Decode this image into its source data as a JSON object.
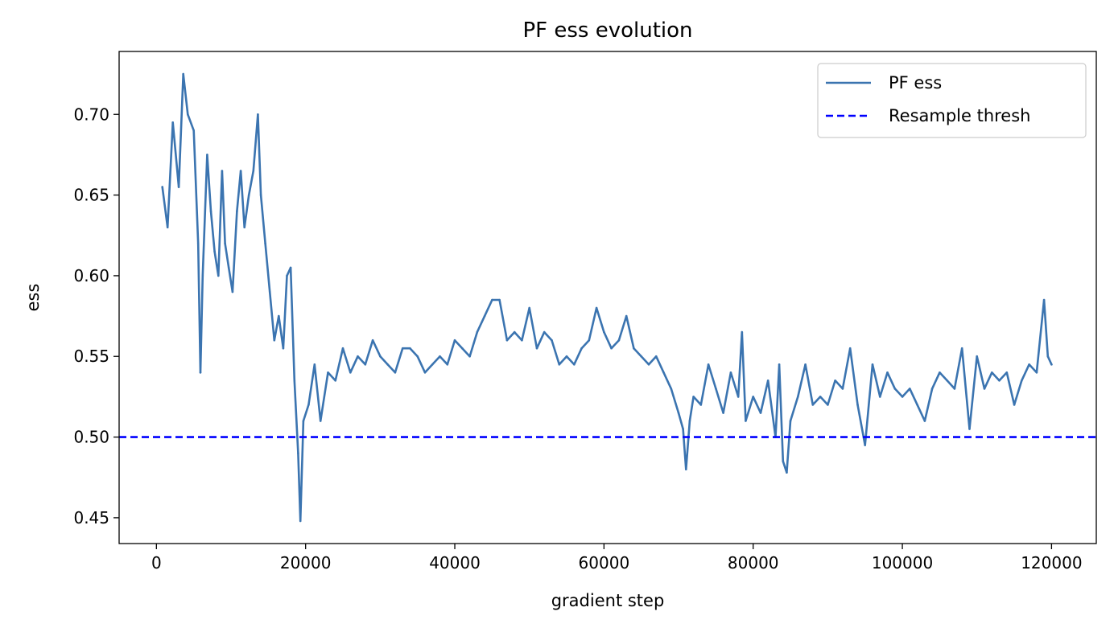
{
  "chart_data": {
    "type": "line",
    "title": "PF ess evolution",
    "xlabel": "gradient step",
    "ylabel": "ess",
    "xlim": [
      -5000,
      126000
    ],
    "ylim": [
      0.434,
      0.739
    ],
    "xticks": [
      0,
      20000,
      40000,
      60000,
      80000,
      100000,
      120000
    ],
    "xtick_labels": [
      "0",
      "20000",
      "40000",
      "60000",
      "80000",
      "100000",
      "120000"
    ],
    "yticks": [
      0.45,
      0.5,
      0.55,
      0.6,
      0.65,
      0.7
    ],
    "ytick_labels": [
      "0.45",
      "0.50",
      "0.55",
      "0.60",
      "0.65",
      "0.70"
    ],
    "grid": false,
    "legend_position": "upper right",
    "series": [
      {
        "name": "PF ess",
        "color": "#3b74b0",
        "style": "solid",
        "x": [
          800,
          1500,
          2200,
          3000,
          3600,
          4200,
          5000,
          5600,
          5900,
          6200,
          6800,
          7300,
          7800,
          8300,
          8800,
          9200,
          9700,
          10200,
          10800,
          11300,
          11800,
          12400,
          13000,
          13600,
          14000,
          14600,
          15200,
          15800,
          16400,
          17000,
          17500,
          18000,
          18500,
          19000,
          19300,
          19700,
          20400,
          21200,
          22000,
          23000,
          24000,
          25000,
          26000,
          27000,
          28000,
          29000,
          30000,
          31000,
          32000,
          33000,
          34000,
          35000,
          36000,
          37000,
          38000,
          39000,
          40000,
          41000,
          42000,
          43000,
          44000,
          45000,
          46000,
          47000,
          48000,
          49000,
          50000,
          51000,
          52000,
          53000,
          54000,
          55000,
          56000,
          57000,
          58000,
          59000,
          60000,
          61000,
          62000,
          63000,
          64000,
          65000,
          66000,
          67000,
          68000,
          69000,
          70000,
          70600,
          71000,
          71500,
          72000,
          73000,
          74000,
          75000,
          76000,
          77000,
          78000,
          78500,
          79000,
          80000,
          81000,
          82000,
          83000,
          83500,
          84000,
          84500,
          85000,
          86000,
          87000,
          88000,
          89000,
          90000,
          91000,
          92000,
          93000,
          94000,
          95000,
          96000,
          97000,
          98000,
          99000,
          100000,
          101000,
          102000,
          103000,
          104000,
          105000,
          106000,
          107000,
          108000,
          109000,
          110000,
          111000,
          112000,
          113000,
          114000,
          115000,
          116000,
          117000,
          118000,
          119000,
          119500,
          120000
        ],
        "y": [
          0.655,
          0.63,
          0.695,
          0.655,
          0.725,
          0.7,
          0.69,
          0.62,
          0.54,
          0.6,
          0.675,
          0.64,
          0.615,
          0.6,
          0.665,
          0.62,
          0.605,
          0.59,
          0.64,
          0.665,
          0.63,
          0.65,
          0.665,
          0.7,
          0.65,
          0.62,
          0.59,
          0.56,
          0.575,
          0.555,
          0.6,
          0.605,
          0.535,
          0.49,
          0.448,
          0.51,
          0.52,
          0.545,
          0.51,
          0.54,
          0.535,
          0.555,
          0.54,
          0.55,
          0.545,
          0.56,
          0.55,
          0.545,
          0.54,
          0.555,
          0.555,
          0.55,
          0.54,
          0.545,
          0.55,
          0.545,
          0.56,
          0.555,
          0.55,
          0.565,
          0.575,
          0.585,
          0.585,
          0.56,
          0.565,
          0.56,
          0.58,
          0.555,
          0.565,
          0.56,
          0.545,
          0.55,
          0.545,
          0.555,
          0.56,
          0.58,
          0.565,
          0.555,
          0.56,
          0.575,
          0.555,
          0.55,
          0.545,
          0.55,
          0.54,
          0.53,
          0.515,
          0.505,
          0.48,
          0.51,
          0.525,
          0.52,
          0.545,
          0.53,
          0.515,
          0.54,
          0.525,
          0.565,
          0.51,
          0.525,
          0.515,
          0.535,
          0.5,
          0.545,
          0.485,
          0.478,
          0.51,
          0.525,
          0.545,
          0.52,
          0.525,
          0.52,
          0.535,
          0.53,
          0.555,
          0.52,
          0.495,
          0.545,
          0.525,
          0.54,
          0.53,
          0.525,
          0.53,
          0.52,
          0.51,
          0.53,
          0.54,
          0.535,
          0.53,
          0.555,
          0.505,
          0.55,
          0.53,
          0.54,
          0.535,
          0.54,
          0.52,
          0.535,
          0.545,
          0.54,
          0.585,
          0.55,
          0.545
        ]
      },
      {
        "name": "Resample thresh",
        "color": "#0000ff",
        "style": "dashed",
        "y_constant": 0.5
      }
    ]
  }
}
